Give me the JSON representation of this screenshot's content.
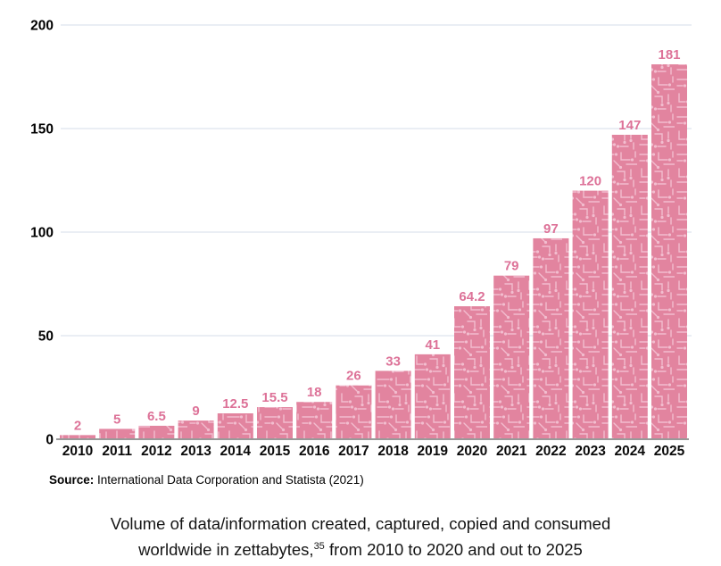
{
  "chart_data": {
    "type": "bar",
    "categories": [
      "2010",
      "2011",
      "2012",
      "2013",
      "2014",
      "2015",
      "2016",
      "2017",
      "2018",
      "2019",
      "2020",
      "2021",
      "2022",
      "2023",
      "2024",
      "2025"
    ],
    "values": [
      2,
      5,
      6.5,
      9,
      12.5,
      15.5,
      18,
      26,
      33,
      41,
      64.2,
      79,
      97,
      120,
      147,
      181
    ],
    "value_labels": [
      "2",
      "5",
      "6.5",
      "9",
      "12.5",
      "15.5",
      "18",
      "26",
      "33",
      "41",
      "64.2",
      "79",
      "97",
      "120",
      "147",
      "181"
    ],
    "title": "",
    "xlabel": "",
    "ylabel": "",
    "ylim": [
      0,
      200
    ],
    "yticks": [
      0,
      50,
      100,
      150,
      200
    ],
    "grid": true,
    "legend": false,
    "bar_color": "#e2849f",
    "bar_pattern": "circuit-board",
    "pattern_line_color": "#f2bdcf",
    "value_label_color": "#dd7298",
    "gridline_color": "#e3e9f1",
    "axis_color": "#999999"
  },
  "source": {
    "prefix": "Source:",
    "text": " International Data Corporation and Statista (2021)"
  },
  "caption": {
    "line1": "Volume of data/information created, captured, copied and consumed",
    "line2_pre": "worldwide in zettabytes,",
    "line2_sup": "35",
    "line2_post": " from 2010 to 2020 and out to 2025"
  }
}
